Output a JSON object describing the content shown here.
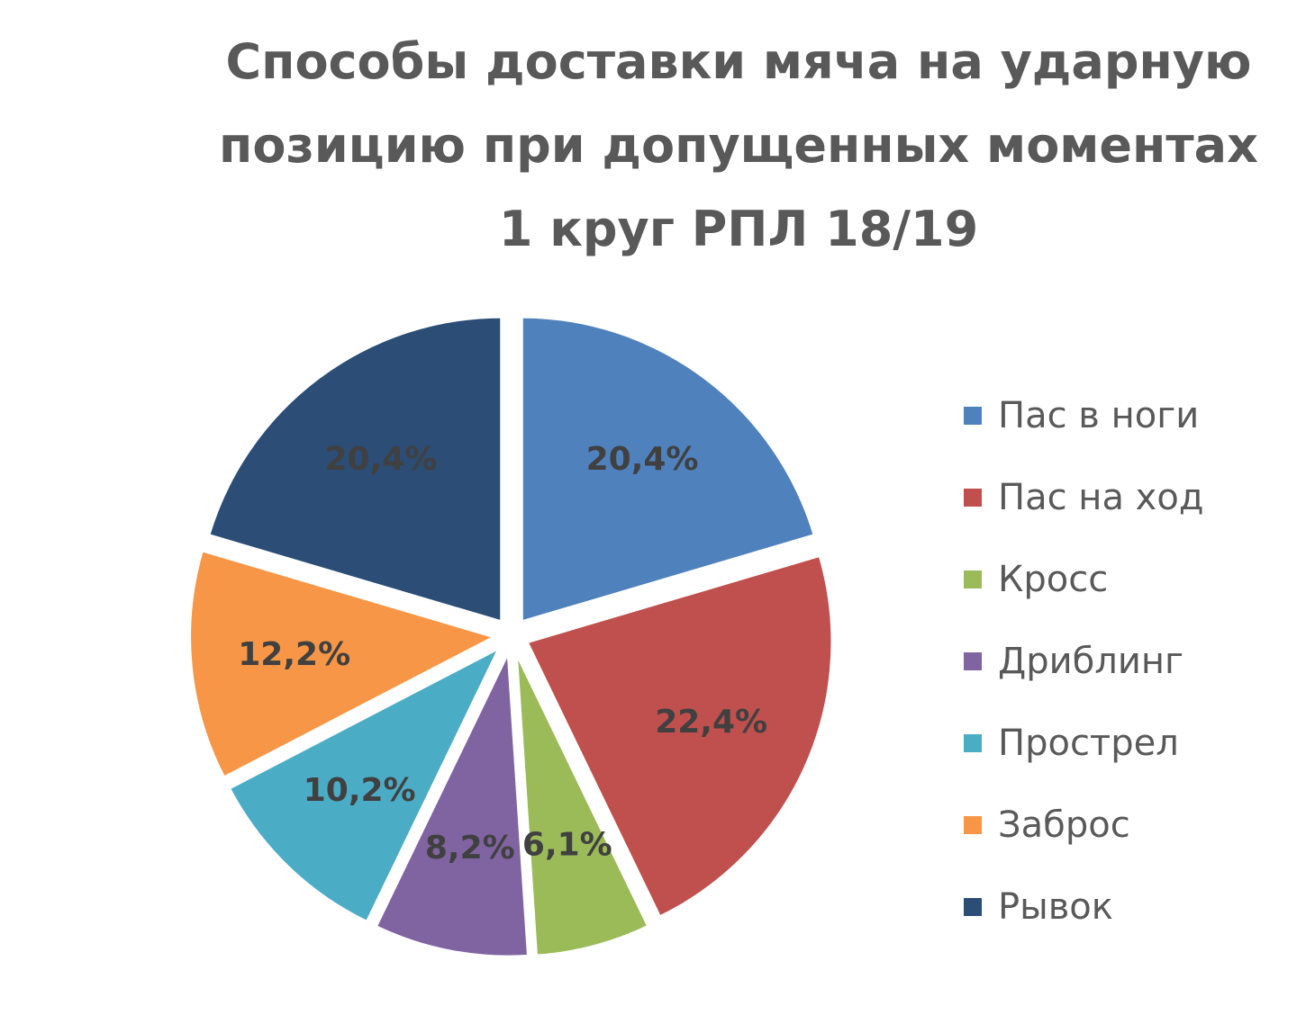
{
  "chart_data": {
    "type": "pie",
    "title": "Способы доставки мяча на ударную\nпозицию при допущенных моментах\n1 круг РПЛ 18/19",
    "categories": [
      "Пас в ноги",
      "Пас на ход",
      "Кросс",
      "Дриблинг",
      "Прострел",
      "Заброс",
      "Рывок"
    ],
    "values": [
      20.4,
      22.4,
      6.1,
      8.2,
      10.2,
      12.2,
      20.4
    ],
    "data_labels": [
      "20,4%",
      "22,4%",
      "6,1%",
      "8,2%",
      "10,2%",
      "12,2%",
      "20,4%"
    ],
    "colors": [
      "#4f81bd",
      "#c0504d",
      "#9bbb59",
      "#8064a2",
      "#4bacc6",
      "#f79646",
      "#2c4d75"
    ],
    "unit": "%",
    "exploded": true,
    "legend_position": "right"
  }
}
